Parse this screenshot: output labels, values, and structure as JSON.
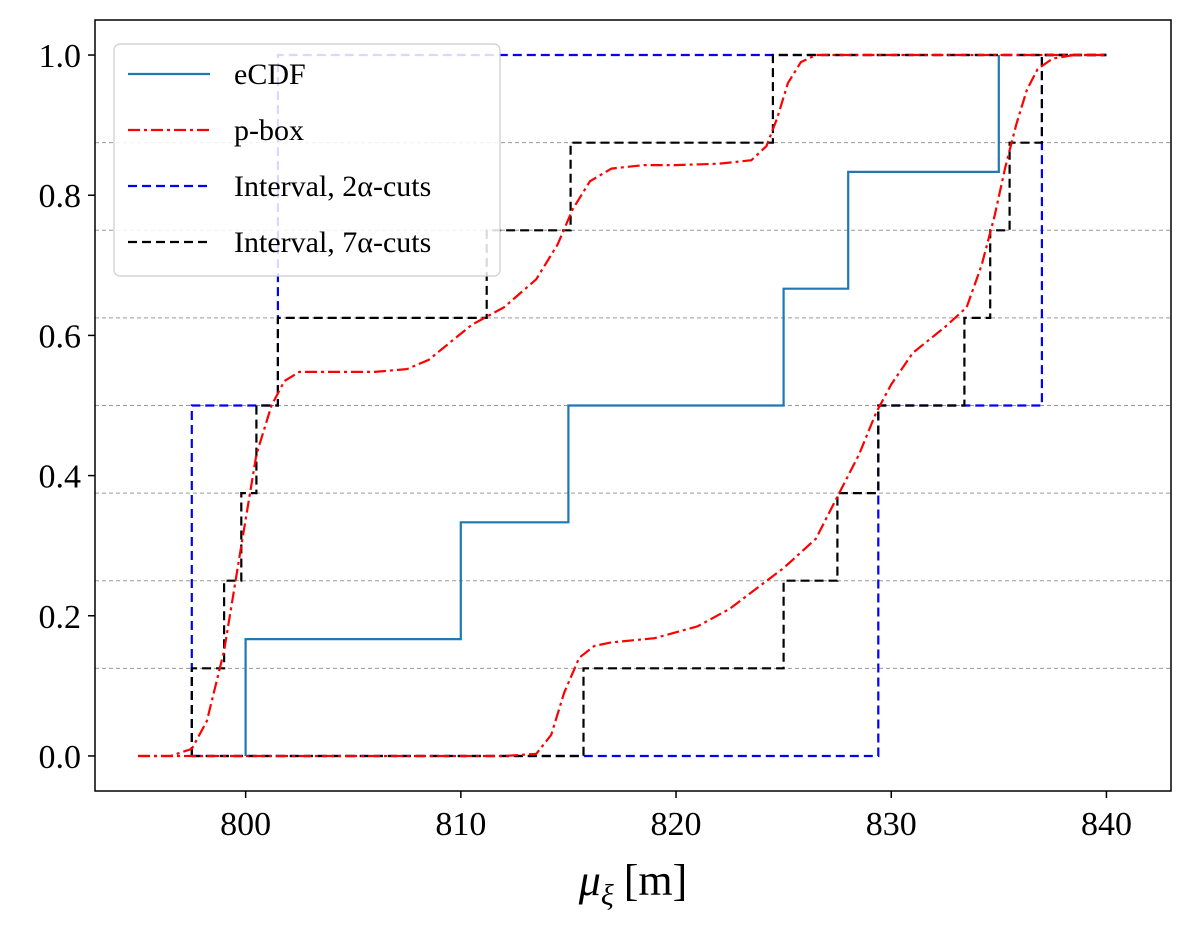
{
  "chart_data": {
    "type": "line",
    "title": "",
    "xlabel_symbol": "μ",
    "xlabel_sub": "ξ",
    "xlabel_unit": "[m]",
    "ylabel": "",
    "xlim": [
      793,
      843
    ],
    "ylim": [
      -0.05,
      1.05
    ],
    "xticks": [
      800,
      810,
      820,
      830,
      840
    ],
    "yticks": [
      0.0,
      0.2,
      0.4,
      0.6,
      0.8,
      1.0
    ],
    "xtick_labels": [
      "800",
      "810",
      "820",
      "830",
      "840"
    ],
    "ytick_labels": [
      "0.0",
      "0.2",
      "0.4",
      "0.6",
      "0.8",
      "1.0"
    ],
    "hlines": [
      0.125,
      0.25,
      0.375,
      0.5,
      0.625,
      0.75,
      0.875
    ],
    "legend_position": "top-left",
    "series": [
      {
        "name": "eCDF",
        "color": "#1f77b4",
        "style": "solid",
        "x": [
          800,
          800,
          810,
          810,
          815,
          815,
          825,
          825,
          828,
          828,
          835,
          835
        ],
        "y": [
          0.0,
          0.1667,
          0.1667,
          0.3333,
          0.3333,
          0.5,
          0.5,
          0.6667,
          0.6667,
          0.8333,
          0.8333,
          1.0
        ]
      },
      {
        "name": "p-box",
        "color": "#ff0000",
        "style": "dashdot",
        "upper": {
          "x": [
            795,
            796.5,
            797.5,
            798.2,
            799,
            799.8,
            800.5,
            801.2,
            801.8,
            802.5,
            804,
            806,
            807.5,
            808.5,
            809.5,
            810.5,
            812,
            813.5,
            814.5,
            815.2,
            816,
            817,
            818.5,
            820,
            822,
            823.5,
            824.2,
            824.7,
            825.2,
            825.8,
            826.5,
            828,
            840
          ],
          "y": [
            0.0,
            0.0,
            0.01,
            0.05,
            0.15,
            0.3,
            0.43,
            0.5,
            0.535,
            0.548,
            0.548,
            0.548,
            0.552,
            0.565,
            0.59,
            0.615,
            0.64,
            0.68,
            0.73,
            0.78,
            0.82,
            0.838,
            0.843,
            0.843,
            0.845,
            0.85,
            0.87,
            0.91,
            0.96,
            0.99,
            1.0,
            1.0,
            1.0
          ]
        },
        "lower": {
          "x": [
            795,
            805,
            812,
            813.5,
            814.2,
            814.8,
            815.5,
            816.2,
            817,
            819,
            821,
            822.5,
            824,
            825,
            826.5,
            827.5,
            828.5,
            829.3,
            830,
            831,
            832.5,
            833.5,
            834.2,
            834.8,
            835.3,
            835.8,
            836.3,
            836.8,
            837.5,
            838.5,
            840
          ],
          "y": [
            0.0,
            0.0,
            0.0,
            0.003,
            0.03,
            0.09,
            0.14,
            0.157,
            0.162,
            0.168,
            0.185,
            0.21,
            0.245,
            0.268,
            0.31,
            0.37,
            0.43,
            0.49,
            0.53,
            0.575,
            0.612,
            0.64,
            0.7,
            0.77,
            0.84,
            0.9,
            0.95,
            0.98,
            0.995,
            1.0,
            1.0
          ]
        }
      },
      {
        "name": "Interval, 2α-cuts",
        "color": "#0000ff",
        "style": "dashed",
        "upper": {
          "x": [
            797.5,
            797.5,
            801.5,
            801.5,
            840
          ],
          "y": [
            0.0,
            0.5,
            0.5,
            1.0,
            1.0
          ]
        },
        "lower": {
          "x": [
            797.5,
            829.4,
            829.4,
            837.0,
            837.0,
            840
          ],
          "y": [
            0.0,
            0.0,
            0.5,
            0.5,
            1.0,
            1.0
          ]
        }
      },
      {
        "name": "Interval, 7α-cuts",
        "color": "#000000",
        "style": "dashed",
        "upper": {
          "x": [
            797.5,
            797.5,
            799.0,
            799.0,
            799.8,
            799.8,
            800.5,
            800.5,
            801.5,
            801.5,
            811.2,
            811.2,
            815.1,
            815.1,
            824.5,
            824.5,
            840
          ],
          "y": [
            0.0,
            0.125,
            0.125,
            0.25,
            0.25,
            0.375,
            0.375,
            0.5,
            0.5,
            0.625,
            0.625,
            0.75,
            0.75,
            0.875,
            0.875,
            1.0,
            1.0
          ]
        },
        "lower": {
          "x": [
            797.5,
            815.7,
            815.7,
            825.0,
            825.0,
            827.5,
            827.5,
            829.4,
            829.4,
            833.4,
            833.4,
            834.6,
            834.6,
            835.5,
            835.5,
            837.0,
            837.0,
            840
          ],
          "y": [
            0.0,
            0.0,
            0.125,
            0.125,
            0.25,
            0.25,
            0.375,
            0.375,
            0.5,
            0.5,
            0.625,
            0.625,
            0.75,
            0.75,
            0.875,
            0.875,
            1.0,
            1.0
          ]
        }
      }
    ],
    "legend": [
      {
        "label": "eCDF",
        "color": "#1f77b4",
        "style": "solid"
      },
      {
        "label": "p-box",
        "color": "#ff0000",
        "style": "dashdot"
      },
      {
        "label": "Interval, 2α-cuts",
        "color": "#0000ff",
        "style": "dashed"
      },
      {
        "label": "Interval, 7α-cuts",
        "color": "#000000",
        "style": "dashed"
      }
    ]
  }
}
